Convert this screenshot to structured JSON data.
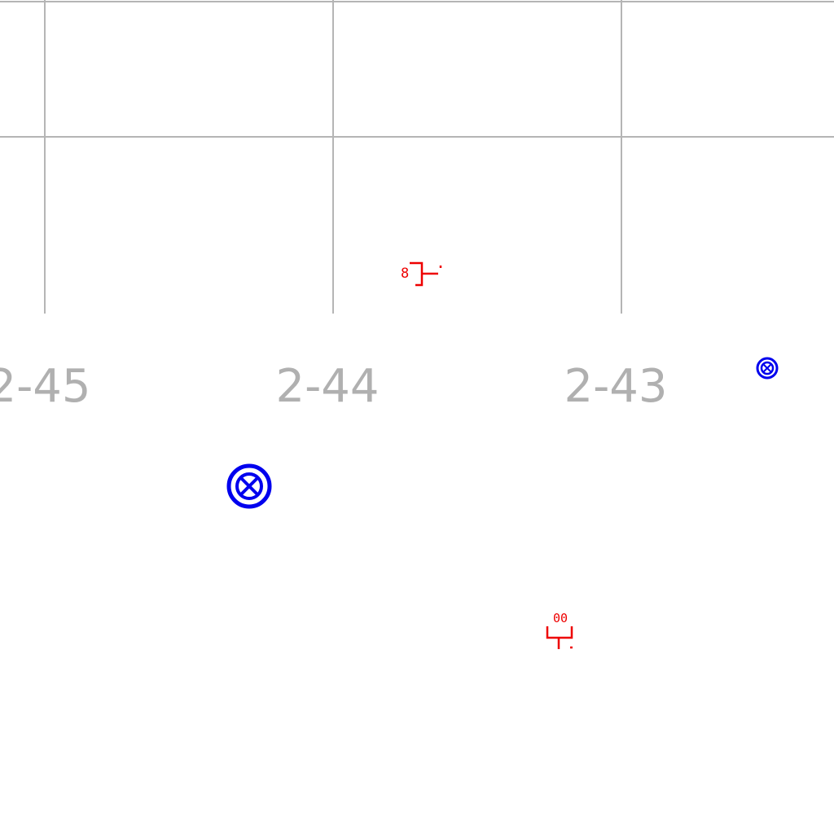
{
  "grid": {
    "labels": [
      "2-45",
      "2-44",
      "2-43"
    ],
    "line_color": "#b5b5b5",
    "label_color": "#b0b0b0"
  },
  "symbols": {
    "blue_markers": [
      {
        "name": "crossed-circle-large",
        "color": "#0000ee"
      },
      {
        "name": "crossed-circle-small",
        "color": "#0000ee"
      }
    ],
    "red_markers": [
      {
        "name": "sensor-glyph-upper",
        "color": "#ee0000",
        "text": "8"
      },
      {
        "name": "sensor-glyph-lower",
        "color": "#ee0000",
        "text": "00"
      }
    ]
  }
}
